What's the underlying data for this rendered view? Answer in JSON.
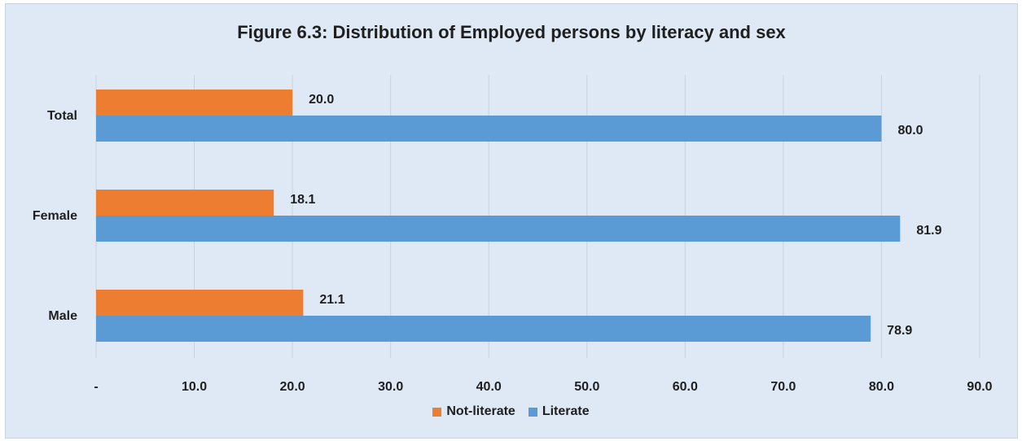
{
  "chart_data": {
    "type": "bar",
    "orientation": "horizontal",
    "title": "Figure 6.3: Distribution of Employed persons by literacy and sex",
    "categories": [
      "Total",
      "Female",
      "Male"
    ],
    "series": [
      {
        "name": "Not-literate",
        "color": "#ed7d31",
        "values": [
          20.0,
          18.1,
          21.1
        ]
      },
      {
        "name": "Literate",
        "color": "#5b9bd5",
        "values": [
          80.0,
          81.9,
          78.9
        ]
      }
    ],
    "xlim": [
      0,
      90
    ],
    "xticks": [
      "-",
      "10.0",
      "20.0",
      "30.0",
      "40.0",
      "50.0",
      "60.0",
      "70.0",
      "80.0",
      "90.0"
    ],
    "grid": true,
    "legend_position": "bottom"
  }
}
